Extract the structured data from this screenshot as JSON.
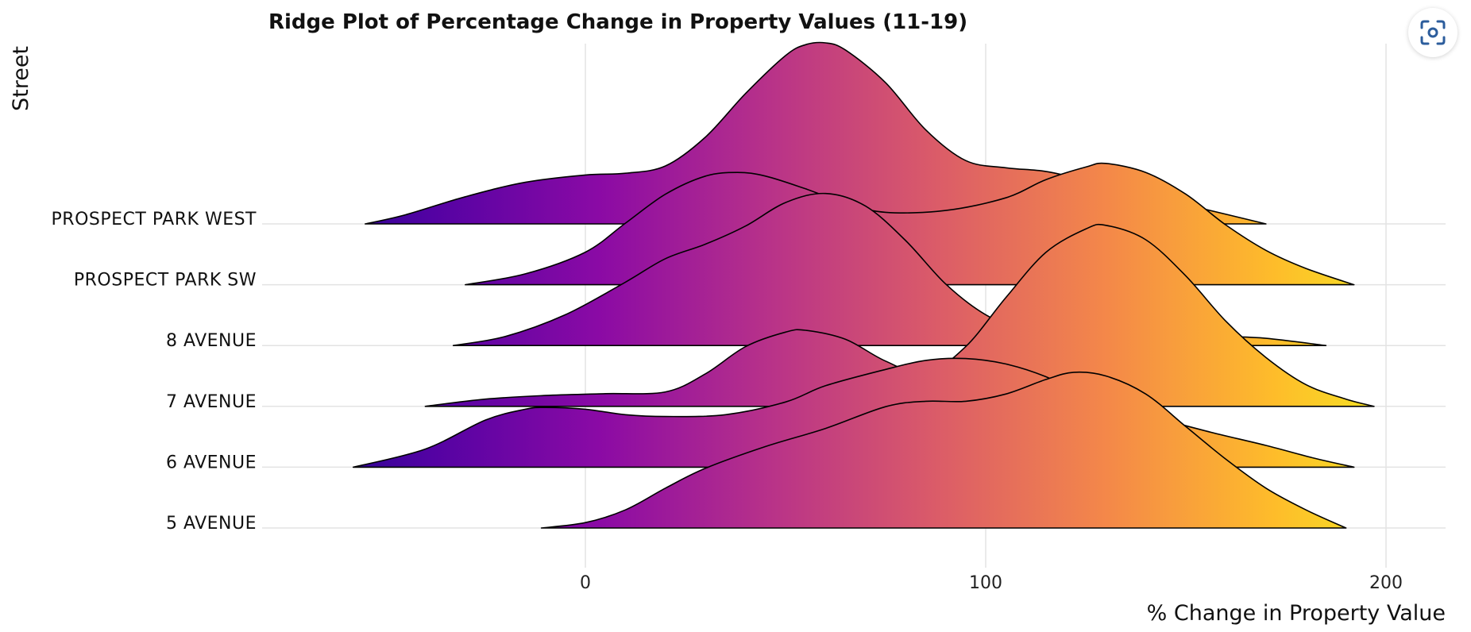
{
  "chart_data": {
    "type": "ridge",
    "title": "Ridge Plot of Percentage Change in Property Values (11-19)",
    "xlabel": "% Change in Property Value",
    "ylabel": "Street",
    "xlim": [
      -81,
      215
    ],
    "xticks": [
      0,
      100,
      200
    ],
    "grid": true,
    "colormap": "plasma",
    "colormap_stops": [
      "#0d0887",
      "#5302a3",
      "#8b0aa5",
      "#b83289",
      "#db5c68",
      "#f48849",
      "#febd2a",
      "#f0f921"
    ],
    "outline_color": "#000000",
    "categories": [
      "PROSPECT PARK WEST",
      "PROSPECT PARK SW",
      "8 AVENUE",
      "7 AVENUE",
      "6 AVENUE",
      "5 AVENUE"
    ],
    "series": [
      {
        "name": "PROSPECT PARK WEST",
        "x_range": [
          -55,
          170
        ],
        "peak_density": 1.0,
        "density": [
          [
            -55,
            0
          ],
          [
            -45,
            0.05
          ],
          [
            -30,
            0.15
          ],
          [
            -15,
            0.23
          ],
          [
            0,
            0.27
          ],
          [
            10,
            0.28
          ],
          [
            20,
            0.32
          ],
          [
            30,
            0.48
          ],
          [
            40,
            0.72
          ],
          [
            50,
            0.93
          ],
          [
            55,
            0.99
          ],
          [
            60,
            1.0
          ],
          [
            65,
            0.96
          ],
          [
            75,
            0.78
          ],
          [
            85,
            0.52
          ],
          [
            95,
            0.35
          ],
          [
            105,
            0.31
          ],
          [
            115,
            0.29
          ],
          [
            125,
            0.24
          ],
          [
            140,
            0.16
          ],
          [
            155,
            0.08
          ],
          [
            170,
            0
          ]
        ]
      },
      {
        "name": "PROSPECT PARK SW",
        "x_range": [
          -30,
          192
        ],
        "peak_density": 0.67,
        "density": [
          [
            -30,
            0
          ],
          [
            -15,
            0.06
          ],
          [
            0,
            0.18
          ],
          [
            10,
            0.34
          ],
          [
            20,
            0.5
          ],
          [
            30,
            0.6
          ],
          [
            38,
            0.62
          ],
          [
            45,
            0.6
          ],
          [
            55,
            0.53
          ],
          [
            65,
            0.45
          ],
          [
            75,
            0.4
          ],
          [
            90,
            0.41
          ],
          [
            105,
            0.48
          ],
          [
            115,
            0.58
          ],
          [
            125,
            0.65
          ],
          [
            130,
            0.67
          ],
          [
            140,
            0.62
          ],
          [
            150,
            0.5
          ],
          [
            160,
            0.33
          ],
          [
            170,
            0.19
          ],
          [
            180,
            0.09
          ],
          [
            192,
            0
          ]
        ]
      },
      {
        "name": "8 AVENUE",
        "x_range": [
          -33,
          185
        ],
        "peak_density": 0.84,
        "density": [
          [
            -33,
            0
          ],
          [
            -20,
            0.05
          ],
          [
            -5,
            0.17
          ],
          [
            10,
            0.35
          ],
          [
            20,
            0.48
          ],
          [
            30,
            0.56
          ],
          [
            40,
            0.66
          ],
          [
            50,
            0.79
          ],
          [
            60,
            0.84
          ],
          [
            70,
            0.77
          ],
          [
            80,
            0.58
          ],
          [
            90,
            0.34
          ],
          [
            100,
            0.17
          ],
          [
            110,
            0.08
          ],
          [
            120,
            0.05
          ],
          [
            140,
            0.06
          ],
          [
            150,
            0.06
          ],
          [
            160,
            0.05
          ],
          [
            170,
            0.04
          ],
          [
            185,
            0
          ]
        ]
      },
      {
        "name": "7 AVENUE",
        "x_range": [
          -40,
          197
        ],
        "peak_density": 1.0,
        "density": [
          [
            -40,
            0
          ],
          [
            -25,
            0.04
          ],
          [
            -10,
            0.06
          ],
          [
            5,
            0.07
          ],
          [
            20,
            0.08
          ],
          [
            30,
            0.18
          ],
          [
            40,
            0.33
          ],
          [
            50,
            0.41
          ],
          [
            55,
            0.42
          ],
          [
            65,
            0.37
          ],
          [
            75,
            0.25
          ],
          [
            85,
            0.18
          ],
          [
            95,
            0.33
          ],
          [
            105,
            0.6
          ],
          [
            115,
            0.85
          ],
          [
            125,
            0.98
          ],
          [
            130,
            1.0
          ],
          [
            140,
            0.92
          ],
          [
            150,
            0.72
          ],
          [
            160,
            0.47
          ],
          [
            170,
            0.27
          ],
          [
            180,
            0.12
          ],
          [
            190,
            0.04
          ],
          [
            197,
            0
          ]
        ]
      },
      {
        "name": "6 AVENUE",
        "x_range": [
          -58,
          192
        ],
        "peak_density": 0.6,
        "density": [
          [
            -58,
            0
          ],
          [
            -40,
            0.1
          ],
          [
            -25,
            0.26
          ],
          [
            -15,
            0.32
          ],
          [
            -10,
            0.33
          ],
          [
            0,
            0.32
          ],
          [
            10,
            0.29
          ],
          [
            20,
            0.28
          ],
          [
            35,
            0.29
          ],
          [
            50,
            0.36
          ],
          [
            60,
            0.45
          ],
          [
            75,
            0.54
          ],
          [
            85,
            0.59
          ],
          [
            95,
            0.6
          ],
          [
            105,
            0.57
          ],
          [
            115,
            0.5
          ],
          [
            125,
            0.39
          ],
          [
            140,
            0.29
          ],
          [
            155,
            0.2
          ],
          [
            170,
            0.12
          ],
          [
            182,
            0.05
          ],
          [
            192,
            0
          ]
        ]
      },
      {
        "name": "5 AVENUE",
        "x_range": [
          -11,
          190
        ],
        "peak_density": 0.86,
        "density": [
          [
            -11,
            0
          ],
          [
            0,
            0.03
          ],
          [
            10,
            0.1
          ],
          [
            20,
            0.22
          ],
          [
            30,
            0.33
          ],
          [
            45,
            0.45
          ],
          [
            60,
            0.55
          ],
          [
            75,
            0.67
          ],
          [
            85,
            0.7
          ],
          [
            95,
            0.7
          ],
          [
            105,
            0.74
          ],
          [
            115,
            0.82
          ],
          [
            122,
            0.86
          ],
          [
            130,
            0.84
          ],
          [
            140,
            0.74
          ],
          [
            150,
            0.56
          ],
          [
            160,
            0.38
          ],
          [
            170,
            0.22
          ],
          [
            180,
            0.1
          ],
          [
            190,
            0
          ]
        ]
      }
    ]
  },
  "toolbar": {
    "focus_icon": "focus-scan-icon"
  }
}
